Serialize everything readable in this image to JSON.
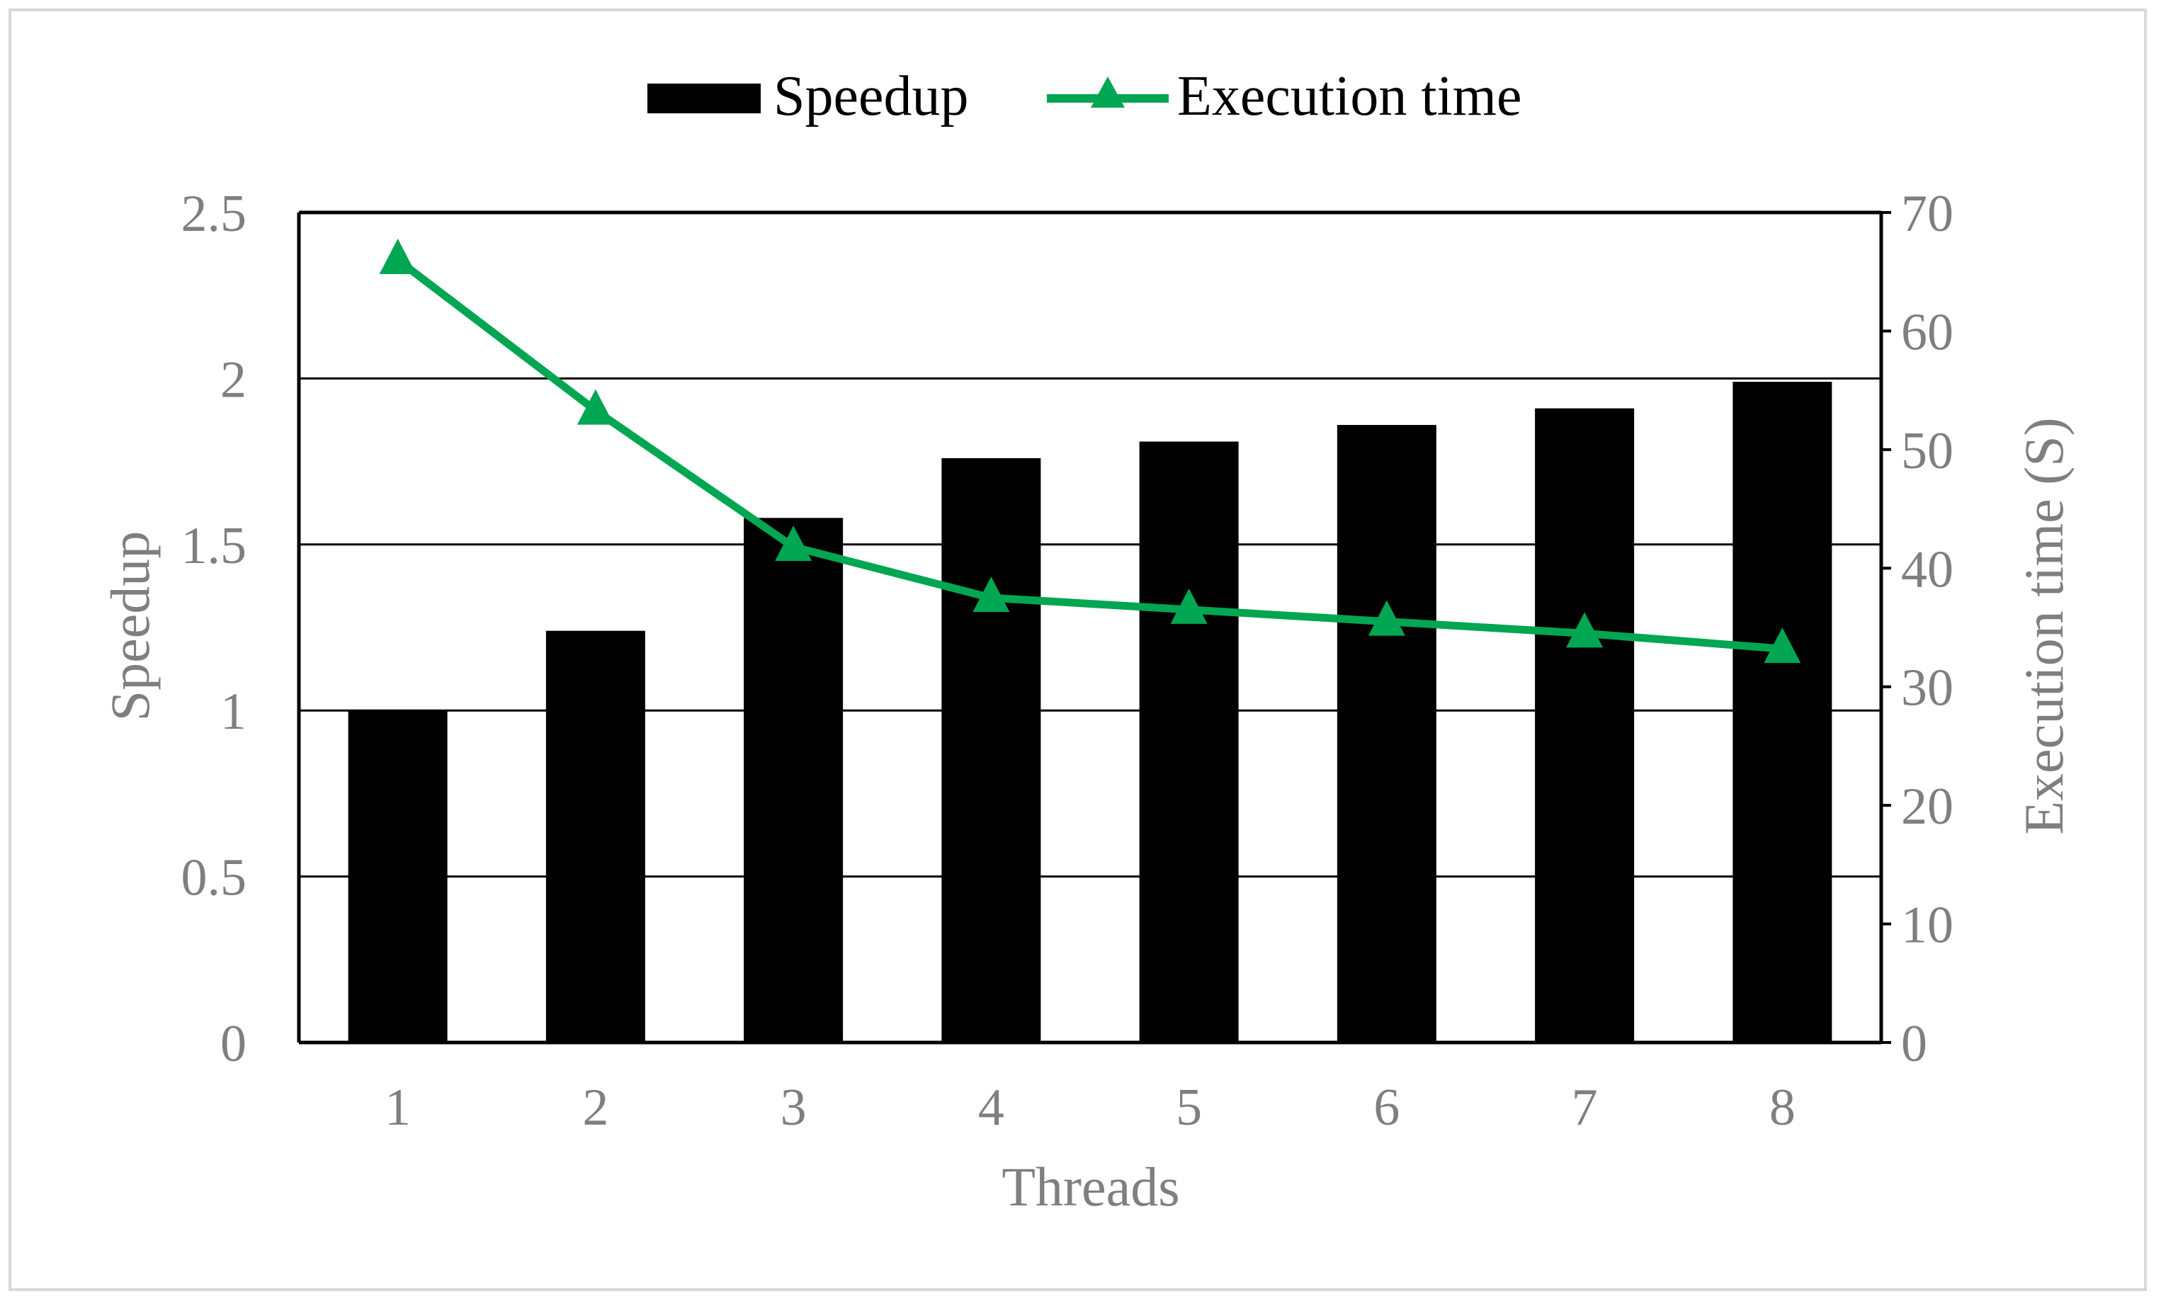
{
  "chart_data": {
    "type": "bar",
    "categories": [
      "1",
      "2",
      "3",
      "4",
      "5",
      "6",
      "7",
      "8"
    ],
    "series": [
      {
        "name": "Speedup",
        "type": "bar",
        "axis": "left",
        "color": "#000000",
        "values": [
          1.0,
          1.24,
          1.58,
          1.76,
          1.81,
          1.86,
          1.91,
          1.99
        ]
      },
      {
        "name": "Execution time",
        "type": "line",
        "marker": "triangle",
        "axis": "right",
        "color": "#00a651",
        "values": [
          66,
          53.3,
          41.8,
          37.5,
          36.5,
          35.5,
          34.5,
          33.2
        ]
      }
    ],
    "xlabel": "Threads",
    "ylabel": "Speedup",
    "y2label": "Execution time (S)",
    "ylim": [
      0,
      2.5
    ],
    "y2lim": [
      0,
      70
    ],
    "yticks": [
      "0",
      "0.5",
      "1",
      "1.5",
      "2",
      "2.5"
    ],
    "y2ticks": [
      "0",
      "10",
      "20",
      "30",
      "40",
      "50",
      "60",
      "70"
    ],
    "grid": true,
    "legend_position": "top-center"
  }
}
